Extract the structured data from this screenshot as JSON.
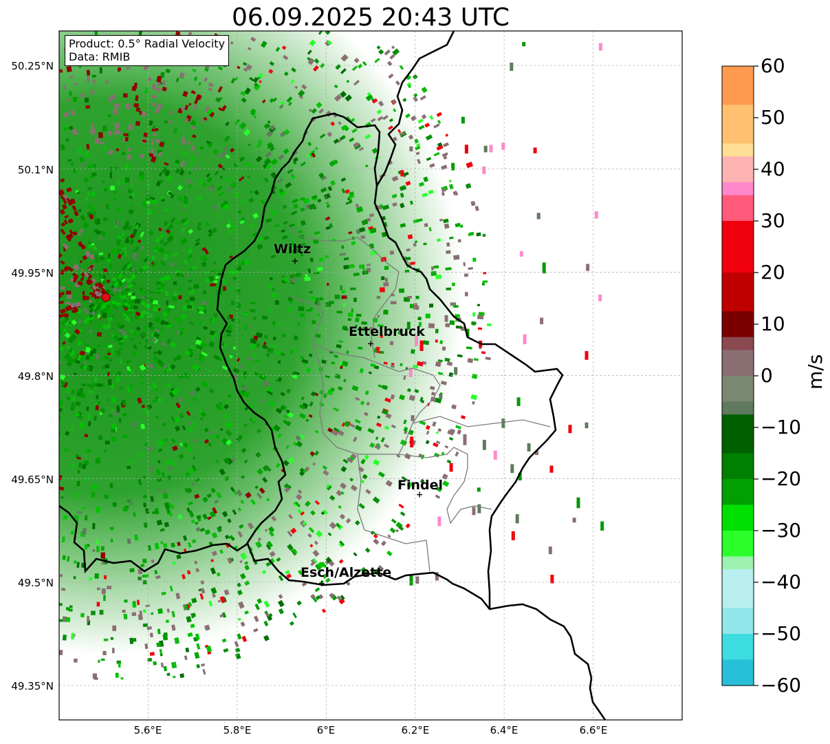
{
  "title": "06.09.2025 20:43 UTC",
  "info_box": {
    "product": "Product: 0.5° Radial Velocity",
    "data_source": "Data: RMIB"
  },
  "map": {
    "lon_range": [
      5.4,
      6.8
    ],
    "lat_range": [
      49.3,
      50.3
    ],
    "latitude_labels": [
      "50.25°N",
      "50.1°N",
      "49.95°N",
      "49.8°N",
      "49.65°N",
      "49.5°N",
      "49.35°N"
    ],
    "longitude_labels": [
      "5.6°E",
      "5.8°E",
      "6°E",
      "6.2°E",
      "6.4°E",
      "6.6°E"
    ],
    "radar_site": {
      "lon": 5.505,
      "lat": 49.914
    },
    "cities": [
      {
        "name": "Wiltz",
        "lon": 5.93,
        "lat": 49.966
      },
      {
        "name": "Ettelbruck",
        "lon": 6.1,
        "lat": 49.846
      },
      {
        "name": "Findel",
        "lon": 6.21,
        "lat": 49.627
      },
      {
        "name": "Esch/Alzette",
        "lon": 5.99,
        "lat": 49.498
      }
    ],
    "gridlines": true
  },
  "colorbar": {
    "label": "m/s",
    "range": [
      -60,
      60
    ],
    "ticks": [
      "60",
      "50",
      "40",
      "30",
      "20",
      "10",
      "0",
      "−10",
      "−20",
      "−30",
      "−40",
      "−50",
      "−60"
    ],
    "colors": {
      "strong_away": "#f0000c",
      "away": "#900000",
      "near_zero_warm": "#8a6f73",
      "near_zero_cool": "#5f7a5c",
      "toward": "#009a00",
      "strong_toward": "#28ff28",
      "very_strong_toward": "#2fdde0",
      "extreme_toward": "#2288cc",
      "extreme_away": "#ff9a5a",
      "pink": "#ff88cc"
    }
  }
}
